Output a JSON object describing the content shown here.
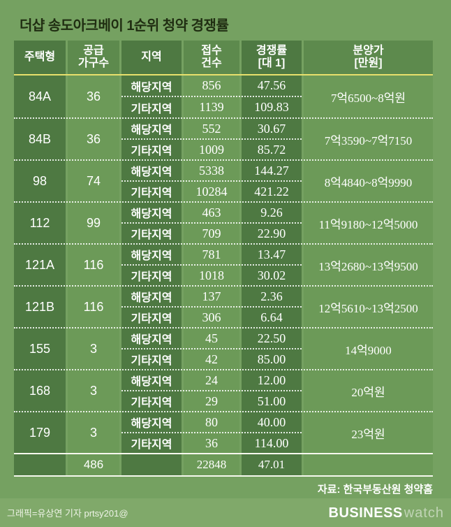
{
  "title": "더샵 송도아크베이 1순위 청약 경쟁률",
  "colors": {
    "background": "#75a161",
    "cell_dark": "#4e7942",
    "cell_light": "#6c9a58",
    "header_light": "#5d8a4d",
    "accent_line_yellow": "#e8e06c",
    "title_text": "#202e12",
    "footer_bar": "#80a96a"
  },
  "table": {
    "headers": [
      "주택형",
      "공급\n가구수",
      "지역",
      "접수\n건수",
      "경쟁률\n[대 1]",
      "분양가\n[만원]"
    ],
    "groups": [
      {
        "type": "84A",
        "supply": "36",
        "rows": [
          {
            "region": "해당지역",
            "applications": "856",
            "rate": "47.56"
          },
          {
            "region": "기타지역",
            "applications": "1139",
            "rate": "109.83"
          }
        ],
        "price": "7억6500~8억원"
      },
      {
        "type": "84B",
        "supply": "36",
        "rows": [
          {
            "region": "해당지역",
            "applications": "552",
            "rate": "30.67"
          },
          {
            "region": "기타지역",
            "applications": "1009",
            "rate": "85.72"
          }
        ],
        "price": "7억3590~7억7150"
      },
      {
        "type": "98",
        "supply": "74",
        "rows": [
          {
            "region": "해당지역",
            "applications": "5338",
            "rate": "144.27"
          },
          {
            "region": "기타지역",
            "applications": "10284",
            "rate": "421.22"
          }
        ],
        "price": "8억4840~8억9990"
      },
      {
        "type": "112",
        "supply": "99",
        "rows": [
          {
            "region": "해당지역",
            "applications": "463",
            "rate": "9.26"
          },
          {
            "region": "기타지역",
            "applications": "709",
            "rate": "22.90"
          }
        ],
        "price": "11억9180~12억5000"
      },
      {
        "type": "121A",
        "supply": "116",
        "rows": [
          {
            "region": "해당지역",
            "applications": "781",
            "rate": "13.47"
          },
          {
            "region": "기타지역",
            "applications": "1018",
            "rate": "30.02"
          }
        ],
        "price": "13억2680~13억9500"
      },
      {
        "type": "121B",
        "supply": "116",
        "rows": [
          {
            "region": "해당지역",
            "applications": "137",
            "rate": "2.36"
          },
          {
            "region": "기타지역",
            "applications": "306",
            "rate": "6.64"
          }
        ],
        "price": "12억5610~13억2500"
      },
      {
        "type": "155",
        "supply": "3",
        "rows": [
          {
            "region": "해당지역",
            "applications": "45",
            "rate": "22.50"
          },
          {
            "region": "기타지역",
            "applications": "42",
            "rate": "85.00"
          }
        ],
        "price": "14억9000"
      },
      {
        "type": "168",
        "supply": "3",
        "rows": [
          {
            "region": "해당지역",
            "applications": "24",
            "rate": "12.00"
          },
          {
            "region": "기타지역",
            "applications": "29",
            "rate": "51.00"
          }
        ],
        "price": "20억원"
      },
      {
        "type": "179",
        "supply": "3",
        "rows": [
          {
            "region": "해당지역",
            "applications": "80",
            "rate": "40.00"
          },
          {
            "region": "기타지역",
            "applications": "36",
            "rate": "114.00"
          }
        ],
        "price": "23억원"
      }
    ],
    "total": {
      "supply": "486",
      "applications": "22848",
      "rate": "47.01"
    }
  },
  "source": "자료: 한국부동산원 청약홈",
  "footer": {
    "credit": "그래픽=유상연 기자 prtsy201@",
    "logo_bold": "BUSINESS",
    "logo_light": "watch"
  },
  "chart_data": {
    "type": "table",
    "title": "더샵 송도아크베이 1순위 청약 경쟁률",
    "columns": [
      "주택형",
      "공급 가구수",
      "지역",
      "접수 건수",
      "경쟁률 [대 1]",
      "분양가 [만원]"
    ],
    "rows": [
      [
        "84A",
        36,
        "해당지역",
        856,
        47.56,
        "7억6500~8억원"
      ],
      [
        "84A",
        36,
        "기타지역",
        1139,
        109.83,
        "7억6500~8억원"
      ],
      [
        "84B",
        36,
        "해당지역",
        552,
        30.67,
        "7억3590~7억7150"
      ],
      [
        "84B",
        36,
        "기타지역",
        1009,
        85.72,
        "7억3590~7억7150"
      ],
      [
        "98",
        74,
        "해당지역",
        5338,
        144.27,
        "8억4840~8억9990"
      ],
      [
        "98",
        74,
        "기타지역",
        10284,
        421.22,
        "8억4840~8억9990"
      ],
      [
        "112",
        99,
        "해당지역",
        463,
        9.26,
        "11억9180~12억5000"
      ],
      [
        "112",
        99,
        "기타지역",
        709,
        22.9,
        "11억9180~12억5000"
      ],
      [
        "121A",
        116,
        "해당지역",
        781,
        13.47,
        "13억2680~13억9500"
      ],
      [
        "121A",
        116,
        "기타지역",
        1018,
        30.02,
        "13억2680~13억9500"
      ],
      [
        "121B",
        116,
        "해당지역",
        137,
        2.36,
        "12억5610~13억2500"
      ],
      [
        "121B",
        116,
        "기타지역",
        306,
        6.64,
        "12억5610~13억2500"
      ],
      [
        "155",
        3,
        "해당지역",
        45,
        22.5,
        "14억9000"
      ],
      [
        "155",
        3,
        "기타지역",
        42,
        85.0,
        "14억9000"
      ],
      [
        "168",
        3,
        "해당지역",
        24,
        12.0,
        "20억원"
      ],
      [
        "168",
        3,
        "기타지역",
        29,
        51.0,
        "20억원"
      ],
      [
        "179",
        3,
        "해당지역",
        80,
        40.0,
        "23억원"
      ],
      [
        "179",
        3,
        "기타지역",
        36,
        114.0,
        "23억원"
      ]
    ],
    "total_row": [
      "",
      486,
      "",
      22848,
      47.01,
      ""
    ],
    "source": "자료: 한국부동산원 청약홈"
  }
}
